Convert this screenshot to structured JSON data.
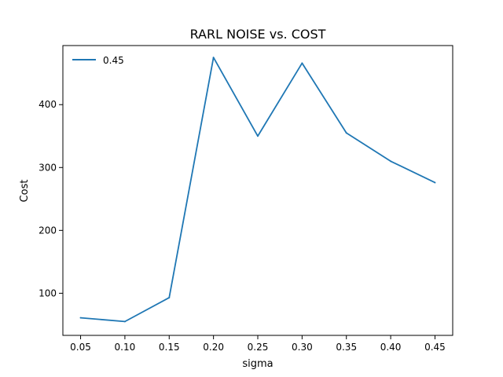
{
  "chart_data": {
    "type": "line",
    "title": "RARL NOISE vs. COST",
    "xlabel": "sigma",
    "ylabel": "Cost",
    "x": [
      0.05,
      0.1,
      0.15,
      0.2,
      0.25,
      0.3,
      0.35,
      0.4,
      0.45
    ],
    "x_tick_labels": [
      "0.05",
      "0.10",
      "0.15",
      "0.20",
      "0.25",
      "0.30",
      "0.35",
      "0.40",
      "0.45"
    ],
    "y_ticks": [
      100,
      200,
      300,
      400
    ],
    "y_tick_labels": [
      "100",
      "200",
      "300",
      "400"
    ],
    "xlim": [
      0.03,
      0.47
    ],
    "ylim": [
      33,
      494
    ],
    "grid": false,
    "legend_position": "top-left",
    "series": [
      {
        "name": "0.45",
        "color": "#1f77b4",
        "values": [
          61,
          55,
          93,
          475,
          350,
          466,
          355,
          310,
          276
        ]
      }
    ]
  }
}
